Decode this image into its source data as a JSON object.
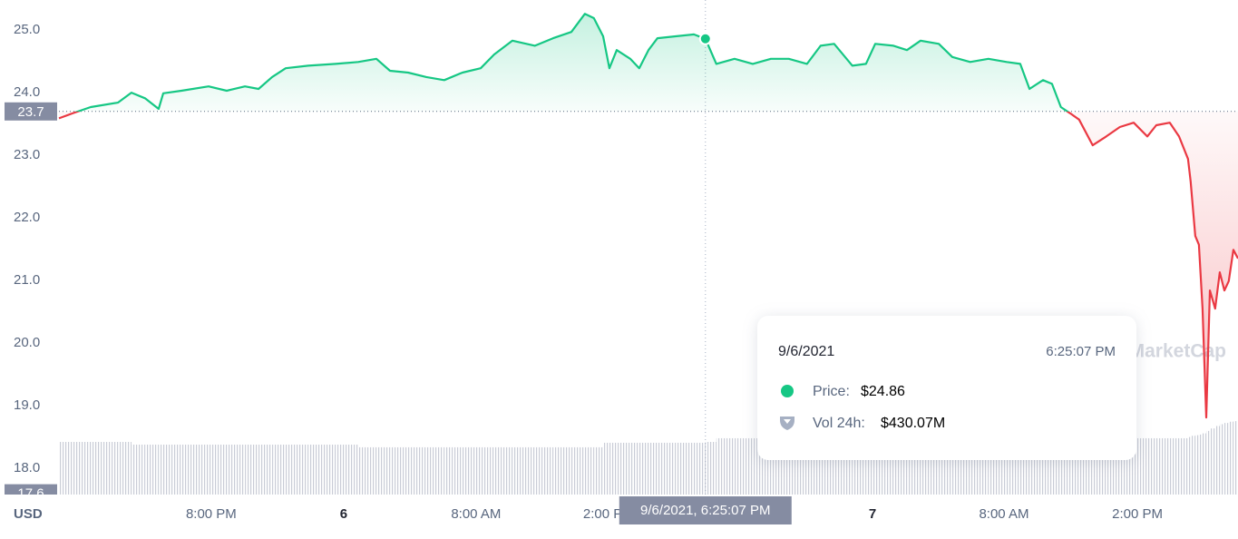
{
  "chart_data": {
    "type": "line",
    "currency": "USD",
    "watermark": "CoinMarketCap",
    "x": [
      0,
      0.41,
      0.96,
      1.78,
      2.19,
      2.6,
      3.01,
      3.15,
      3.7,
      4.52,
      5.07,
      5.62,
      6.03,
      6.44,
      6.85,
      7.53,
      8.36,
      9.04,
      9.59,
      10.0,
      10.55,
      11.1,
      11.64,
      12.19,
      12.74,
      13.15,
      13.7,
      14.38,
      14.93,
      15.48,
      15.89,
      16.16,
      16.44,
      16.63,
      16.85,
      17.26,
      17.53,
      17.81,
      18.08,
      18.63,
      19.18,
      19.53,
      19.86,
      20.41,
      20.96,
      21.51,
      22.05,
      22.6,
      23.01,
      23.42,
      23.97,
      24.38,
      24.66,
      25.21,
      25.62,
      26.03,
      26.58,
      26.99,
      27.53,
      28.08,
      28.63,
      29.04,
      29.32,
      29.73,
      30.0,
      30.27,
      30.55,
      30.82,
      31.23,
      31.64,
      32.05,
      32.47,
      32.88,
      33.15,
      33.56,
      33.84,
      34.11,
      34.19,
      34.33,
      34.44,
      34.55,
      34.66,
      34.77,
      34.93,
      35.07,
      35.21,
      35.34,
      35.48,
      35.62
    ],
    "values": [
      23.59,
      23.67,
      23.77,
      23.84,
      24.0,
      23.91,
      23.74,
      23.99,
      24.03,
      24.1,
      24.03,
      24.1,
      24.06,
      24.25,
      24.39,
      24.43,
      24.46,
      24.49,
      24.54,
      24.35,
      24.32,
      24.25,
      24.2,
      24.32,
      24.39,
      24.61,
      24.83,
      24.75,
      24.87,
      24.97,
      25.26,
      25.19,
      24.9,
      24.39,
      24.68,
      24.54,
      24.39,
      24.68,
      24.87,
      24.9,
      24.93,
      24.86,
      24.46,
      24.54,
      24.46,
      24.54,
      24.54,
      24.46,
      24.75,
      24.78,
      24.43,
      24.46,
      24.78,
      24.75,
      24.68,
      24.83,
      24.78,
      24.57,
      24.49,
      24.54,
      24.49,
      24.46,
      24.06,
      24.2,
      24.14,
      23.77,
      23.67,
      23.57,
      23.16,
      23.3,
      23.45,
      23.52,
      23.3,
      23.48,
      23.52,
      23.3,
      22.94,
      22.58,
      21.71,
      21.57,
      20.55,
      18.81,
      20.84,
      20.55,
      21.13,
      20.84,
      20.99,
      21.49,
      21.35
    ],
    "volume": [
      430,
      430,
      430,
      430,
      408,
      408,
      408,
      408,
      408,
      408,
      408,
      408,
      408,
      408,
      408,
      408,
      408,
      386,
      386,
      386,
      386,
      386,
      386,
      386,
      386,
      386,
      386,
      386,
      386,
      386,
      386,
      386,
      423,
      423,
      423,
      423,
      423,
      423,
      423,
      423,
      423,
      430.07,
      460,
      460,
      460,
      460,
      460,
      460,
      460,
      460,
      460,
      460,
      460,
      460,
      460,
      460,
      460,
      460,
      460,
      460,
      460,
      460,
      460,
      460,
      460,
      460,
      460,
      460,
      460,
      460,
      460,
      460,
      460,
      460,
      460,
      460,
      470,
      480,
      485,
      490,
      500,
      520,
      540,
      560,
      575,
      585,
      595,
      600,
      608
    ],
    "up_color": "#16c784",
    "down_color": "#ea3943",
    "volume_color": "#c9ccd6",
    "baseline": 23.7,
    "low_label": 17.6,
    "xlim": [
      0,
      35.62
    ],
    "xticks": [
      {
        "value": 4.6,
        "label": "8:00 PM"
      },
      {
        "value": 8.6,
        "label": "6"
      },
      {
        "value": 12.6,
        "label": "8:00 AM"
      },
      {
        "value": 16.6,
        "label": "2:00 PM"
      },
      {
        "value": 24.58,
        "label": "7"
      },
      {
        "value": 28.55,
        "label": "8:00 AM"
      },
      {
        "value": 32.58,
        "label": "2:00 PM"
      }
    ],
    "ylim": [
      17.58,
      25.48
    ],
    "yticks": [
      {
        "value": 18,
        "label": "18.0"
      },
      {
        "value": 19,
        "label": "19.0"
      },
      {
        "value": 20,
        "label": "20.0"
      },
      {
        "value": 21,
        "label": "21.0"
      },
      {
        "value": 22,
        "label": "22.0"
      },
      {
        "value": 23,
        "label": "23.0"
      },
      {
        "value": 24,
        "label": "24.0"
      },
      {
        "value": 25,
        "label": "25.0"
      }
    ],
    "cursor_label": "9/6/2021, 6:25:07 PM",
    "tooltip": {
      "date": "9/6/2021",
      "time": "6:25:07 PM",
      "price_label": "Price:",
      "price": "$24.86",
      "volume_label": "Vol 24h:",
      "volume": "$430.07M"
    }
  }
}
